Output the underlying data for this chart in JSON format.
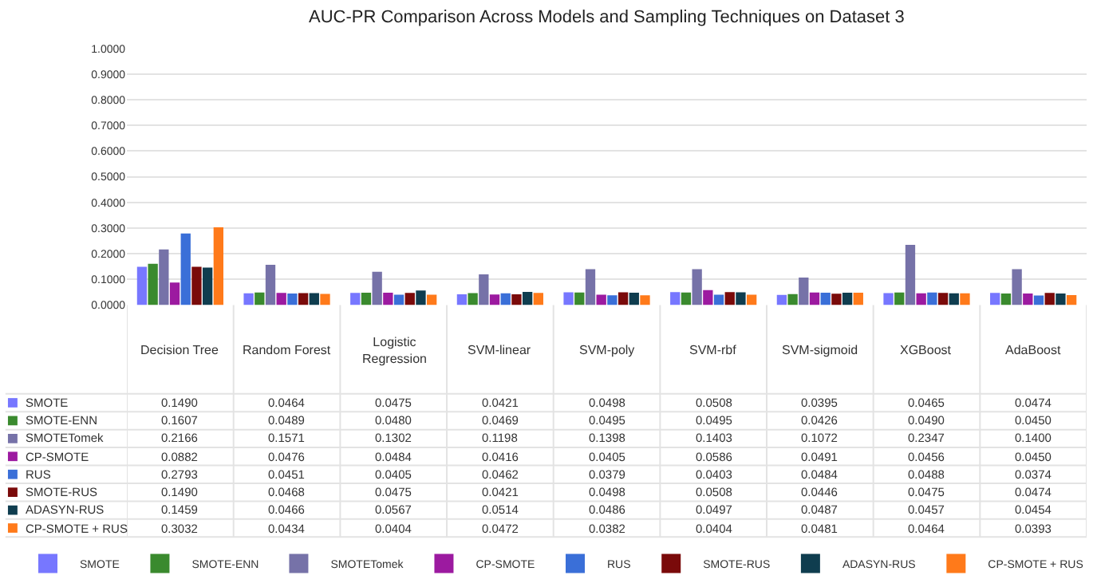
{
  "chart_data": {
    "type": "bar",
    "title": "AUC-PR Comparison Across Models and Sampling Techniques on Dataset 3",
    "categories": [
      "Decision Tree",
      "Random Forest",
      "Logistic Regression",
      "SVM-linear",
      "SVM-poly",
      "SVM-rbf",
      "SVM-sigmoid",
      "XGBoost",
      "AdaBoost"
    ],
    "series": [
      {
        "name": "SMOTE",
        "color": "#7777ff",
        "values": [
          0.149,
          0.0464,
          0.0475,
          0.0421,
          0.0498,
          0.0508,
          0.0395,
          0.0465,
          0.0474
        ],
        "value_labels": [
          "0.1490",
          "0.0464",
          "0.0475",
          "0.0421",
          "0.0498",
          "0.0508",
          "0.0395",
          "0.0465",
          "0.0474"
        ]
      },
      {
        "name": "SMOTE-ENN",
        "color": "#3a8a2e",
        "values": [
          0.1607,
          0.0489,
          0.048,
          0.0469,
          0.0495,
          0.0495,
          0.0426,
          0.049,
          0.045
        ],
        "value_labels": [
          "0.1607",
          "0.0489",
          "0.0480",
          "0.0469",
          "0.0495",
          "0.0495",
          "0.0426",
          "0.0490",
          "0.0450"
        ]
      },
      {
        "name": "SMOTETomek",
        "color": "#7672a8",
        "values": [
          0.2166,
          0.1571,
          0.1302,
          0.1198,
          0.1398,
          0.1403,
          0.1072,
          0.2347,
          0.14
        ],
        "value_labels": [
          "0.2166",
          "0.1571",
          "0.1302",
          "0.1198",
          "0.1398",
          "0.1403",
          "0.1072",
          "0.2347",
          "0.1400"
        ]
      },
      {
        "name": "CP-SMOTE",
        "color": "#9c1aa0",
        "values": [
          0.0882,
          0.0476,
          0.0484,
          0.0416,
          0.0405,
          0.0586,
          0.0491,
          0.0456,
          0.045
        ],
        "value_labels": [
          "0.0882",
          "0.0476",
          "0.0484",
          "0.0416",
          "0.0405",
          "0.0586",
          "0.0491",
          "0.0456",
          "0.0450"
        ]
      },
      {
        "name": "RUS",
        "color": "#3a6fd8",
        "values": [
          0.2793,
          0.0451,
          0.0405,
          0.0462,
          0.0379,
          0.0403,
          0.0484,
          0.0488,
          0.0374
        ],
        "value_labels": [
          "0.2793",
          "0.0451",
          "0.0405",
          "0.0462",
          "0.0379",
          "0.0403",
          "0.0484",
          "0.0488",
          "0.0374"
        ]
      },
      {
        "name": "SMOTE-RUS",
        "color": "#7a0a0a",
        "values": [
          0.149,
          0.0468,
          0.0475,
          0.0421,
          0.0498,
          0.0508,
          0.0446,
          0.0475,
          0.0474
        ],
        "value_labels": [
          "0.1490",
          "0.0468",
          "0.0475",
          "0.0421",
          "0.0498",
          "0.0508",
          "0.0446",
          "0.0475",
          "0.0474"
        ]
      },
      {
        "name": "ADASYN-RUS",
        "color": "#0f3d4f",
        "values": [
          0.1459,
          0.0466,
          0.0567,
          0.0514,
          0.0486,
          0.0497,
          0.0487,
          0.0457,
          0.0454
        ],
        "value_labels": [
          "0.1459",
          "0.0466",
          "0.0567",
          "0.0514",
          "0.0486",
          "0.0497",
          "0.0487",
          "0.0457",
          "0.0454"
        ]
      },
      {
        "name": "CP-SMOTE + RUS",
        "color": "#ff7a1a",
        "values": [
          0.3032,
          0.0434,
          0.0404,
          0.0472,
          0.0382,
          0.0404,
          0.0481,
          0.0464,
          0.0393
        ],
        "value_labels": [
          "0.3032",
          "0.0434",
          "0.0404",
          "0.0472",
          "0.0382",
          "0.0404",
          "0.0481",
          "0.0464",
          "0.0393"
        ]
      }
    ],
    "ylim": [
      0,
      1
    ],
    "yticks": [
      {
        "value": 0,
        "label": "0.0000"
      },
      {
        "value": 0.1,
        "label": "0.1000"
      },
      {
        "value": 0.2,
        "label": "0.2000"
      },
      {
        "value": 0.3,
        "label": "0.3000"
      },
      {
        "value": 0.4,
        "label": "0.4000"
      },
      {
        "value": 0.5,
        "label": "0.5000"
      },
      {
        "value": 0.6,
        "label": "0.6000"
      },
      {
        "value": 0.7,
        "label": "0.7000"
      },
      {
        "value": 0.8,
        "label": "0.8000"
      },
      {
        "value": 0.9,
        "label": "0.9000"
      },
      {
        "value": 1,
        "label": "1.0000"
      }
    ],
    "grid": "y",
    "legend": "bottom"
  }
}
